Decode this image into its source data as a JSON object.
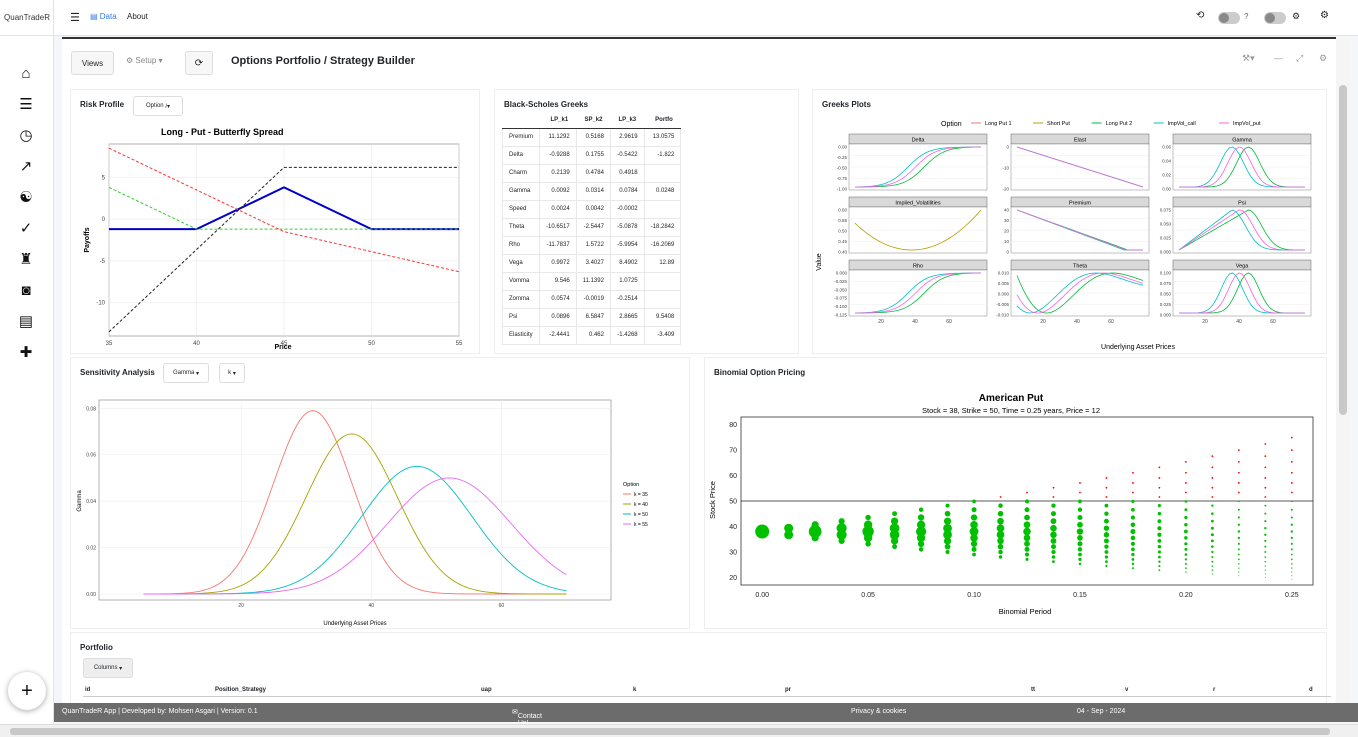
{
  "app": {
    "brand": "QuanTradeR"
  },
  "sidebar": {
    "icons": [
      "home-icon",
      "tasks-icon",
      "clock-icon",
      "chart-line-icon",
      "yin-yang-icon",
      "check-icon",
      "chess-icon",
      "robot-icon",
      "dashboard-icon",
      "puzzle-icon"
    ],
    "add_label": "+"
  },
  "topbar": {
    "data_label": "Data",
    "about_label": "About",
    "help_label": "?"
  },
  "header": {
    "views_label": "Views",
    "setup_label": "Setup",
    "title": "Options Portfolio / Strategy Builder"
  },
  "risk_profile": {
    "title": "Risk Profile",
    "dropdown": "Option",
    "chart_title": "Long - Put - Butterfly Spread",
    "xlabel": "Price",
    "ylabel": "Payoffs",
    "xticks": [
      "35",
      "40",
      "45",
      "50",
      "55"
    ],
    "yticks": [
      "5",
      "0",
      "-5",
      "-10"
    ]
  },
  "greeks_table": {
    "title": "Black-Scholes Greeks",
    "columns": [
      "",
      "LP_k1",
      "SP_k2",
      "LP_k3",
      "Portfo"
    ],
    "rows": [
      [
        "Premium",
        "11.1292",
        "0.5168",
        "2.9619",
        "13.0575"
      ],
      [
        "Delta",
        "-0.9288",
        "0.1755",
        "-0.5422",
        "-1.822"
      ],
      [
        "Charm",
        "0.2139",
        "0.4784",
        "0.4918",
        ""
      ],
      [
        "Gamma",
        "0.0092",
        "0.0314",
        "0.0784",
        "0.0248"
      ],
      [
        "Speed",
        "0.0024",
        "0.0042",
        "-0.0002",
        ""
      ],
      [
        "Theta",
        "-10.6517",
        "-2.5447",
        "-5.0878",
        "-18.2842"
      ],
      [
        "Rho",
        "-11.7837",
        "1.5722",
        "-5.9954",
        "-16.2069"
      ],
      [
        "Vega",
        "0.9972",
        "3.4027",
        "8.4902",
        "12.89"
      ],
      [
        "Vomma",
        "9.546",
        "11.1392",
        "1.0725",
        ""
      ],
      [
        "Zomma",
        "0.0574",
        "-0.0019",
        "-0.2514",
        ""
      ],
      [
        "Psi",
        "0.0896",
        "6.5847",
        "2.8665",
        "9.5408"
      ],
      [
        "Elasticity",
        "-2.4441",
        "0.462",
        "-1.4268",
        "-3.409"
      ]
    ]
  },
  "greeks_plots": {
    "title": "Greeks Plots",
    "legend_title": "Option",
    "legend": [
      "Long Put 1",
      "Short Put",
      "Long Put 2",
      "ImpVol_call",
      "ImpVol_put"
    ],
    "legend_colors": [
      "#f8766d",
      "#b79f00",
      "#00ba38",
      "#00bfc4",
      "#f564e3"
    ],
    "facets": [
      "Delta",
      "Elast",
      "Gamma",
      "Implied_Volatilities",
      "Premium",
      "Psi",
      "Rho",
      "Theta",
      "Vega"
    ],
    "ylabel": "Value",
    "xlabel": "Underlying Asset Prices",
    "xticks": [
      "20",
      "40",
      "60"
    ],
    "facet_yticks": [
      [
        "0.00",
        "-0.25",
        "-0.50",
        "-0.75",
        "-1.00"
      ],
      [
        "0",
        "-10",
        "-20"
      ],
      [
        "0.06",
        "0.04",
        "0.02",
        "0.00"
      ],
      [
        "0.60",
        "0.55",
        "0.50",
        "0.45",
        "0.40"
      ],
      [
        "40",
        "30",
        "20",
        "10",
        "0"
      ],
      [
        "0.075",
        "0.050",
        "0.025",
        "0.000"
      ],
      [
        "0.000",
        "-0.025",
        "-0.050",
        "-0.075",
        "-0.100",
        "-0.125"
      ],
      [
        "0.010",
        "0.005",
        "0.000",
        "-0.005",
        "-0.010"
      ],
      [
        "0.100",
        "0.075",
        "0.050",
        "0.025",
        "0.000"
      ]
    ]
  },
  "sensitivity": {
    "title": "Sensitivity Analysis",
    "dropdown1": "Gamma",
    "dropdown2": "k",
    "ylabel": "Gamma",
    "xlabel": "Underlying Asset Prices",
    "yticks": [
      "0.08",
      "0.06",
      "0.04",
      "0.02",
      "0.00"
    ],
    "xticks": [
      "20",
      "40",
      "60"
    ],
    "legend_title": "Option",
    "legend": [
      "k = 35",
      "k = 40",
      "k = 50",
      "k = 55"
    ],
    "colors": [
      "#f8766d",
      "#a3a500",
      "#00bfc4",
      "#e76bf3"
    ]
  },
  "binomial": {
    "title": "Binomial Option Pricing",
    "chart_title": "American Put",
    "subtitle": "Stock = 38, Strike = 50, Time = 0.25 years, Price = 12",
    "xlabel": "Binomial Period",
    "ylabel": "Stock Price",
    "xticks": [
      "0.00",
      "0.05",
      "0.10",
      "0.15",
      "0.20",
      "0.25"
    ],
    "yticks": [
      "80",
      "70",
      "60",
      "50",
      "40",
      "30",
      "20"
    ]
  },
  "portfolio": {
    "title": "Portfolio",
    "columns_button": "Columns",
    "headers": [
      "id",
      "Position_Strategy",
      "uap",
      "k",
      "pr",
      "tt",
      "v",
      "r",
      "d"
    ]
  },
  "footer": {
    "left": "QuanTradeR App | Developed by: Mohsen Asgari | Version: 0.1",
    "contact": "Contact Us!",
    "privacy": "Privacy & cookies",
    "date": "04 - Sep - 2024"
  },
  "chart_data": [
    {
      "type": "line",
      "title": "Long - Put - Butterfly Spread",
      "xlabel": "Price",
      "ylabel": "Payoffs",
      "xlim": [
        35,
        55
      ],
      "ylim": [
        -14,
        9
      ],
      "series": [
        {
          "x": [
            35,
            40,
            45,
            50,
            55
          ],
          "values": [
            -1.2,
            -1.2,
            3.8,
            -1.2,
            -1.2
          ],
          "color": "#0000cc"
        },
        {
          "x": [
            35,
            45,
            55
          ],
          "values": [
            8.5,
            -1.5,
            -6.3
          ],
          "color": "#ff3333"
        },
        {
          "x": [
            35,
            40,
            55
          ],
          "values": [
            3.8,
            -1.2,
            -1.2
          ],
          "color": "#33cc33"
        },
        {
          "x": [
            35,
            45,
            55
          ],
          "values": [
            -13.5,
            6.2,
            6.2
          ],
          "color": "#222222"
        }
      ]
    },
    {
      "type": "line",
      "xlabel": "Underlying Asset Prices",
      "ylabel": "Gamma",
      "xlim": [
        0,
        75
      ],
      "ylim": [
        0,
        0.081
      ],
      "series": [
        {
          "name": "k = 35",
          "peak": 31,
          "height": 0.079,
          "sd": 6.0
        },
        {
          "name": "k = 40",
          "peak": 37,
          "height": 0.069,
          "sd": 7.0
        },
        {
          "name": "k = 50",
          "peak": 47,
          "height": 0.055,
          "sd": 8.5
        },
        {
          "name": "k = 55",
          "peak": 52,
          "height": 0.05,
          "sd": 9.5
        }
      ]
    },
    {
      "type": "scatter",
      "title": "American Put",
      "xlabel": "Binomial Period",
      "ylabel": "Stock Price",
      "xlim": [
        -0.01,
        0.26
      ],
      "ylim": [
        17,
        83
      ],
      "strike": 50,
      "stock": 38,
      "steps": 20,
      "up": 1.0345
    }
  ]
}
